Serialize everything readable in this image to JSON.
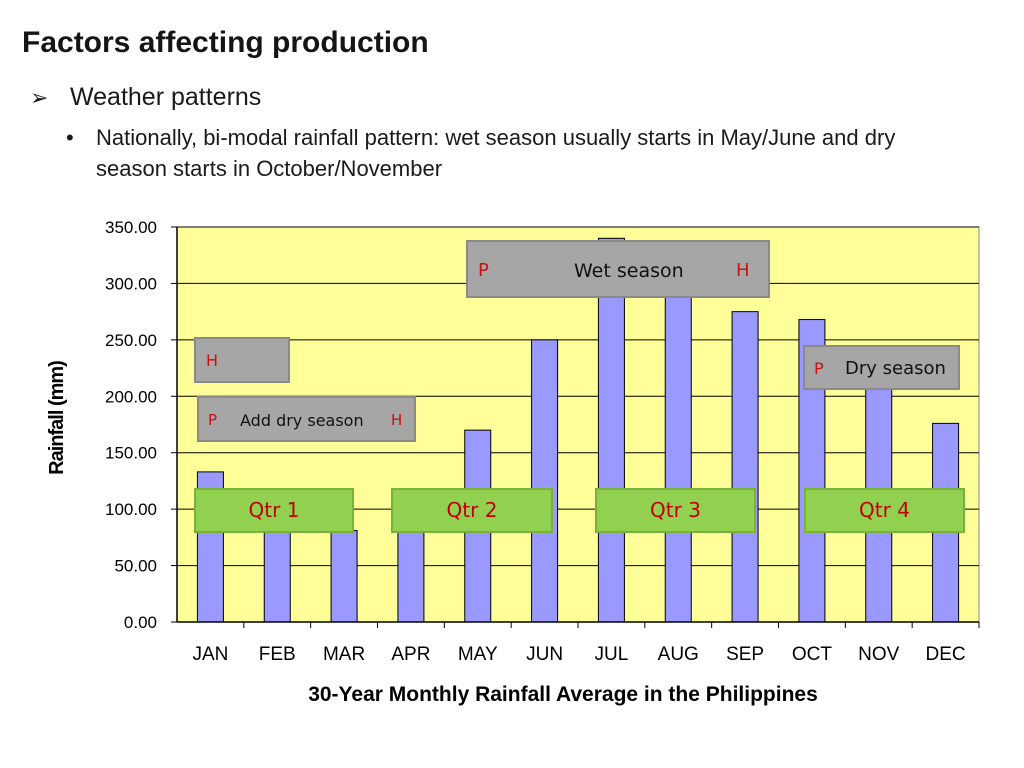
{
  "slide": {
    "title": "Factors affecting production",
    "bullet_level1": "Weather patterns",
    "bullet_level1_marker": "➢",
    "bullet_level2_marker": "•",
    "bullet_level2": "Nationally, bi-modal rainfall pattern: wet season usually starts in May/June and dry season starts in October/November"
  },
  "chart_data": {
    "type": "bar",
    "title": "30-Year Monthly Rainfall Average in the Philippines",
    "xlabel": "30-Year Monthly Rainfall Average in the Philippines",
    "ylabel": "Rainfall (mm)",
    "categories": [
      "JAN",
      "FEB",
      "MAR",
      "APR",
      "MAY",
      "JUN",
      "JUL",
      "AUG",
      "SEP",
      "OCT",
      "NOV",
      "DEC"
    ],
    "values": [
      133,
      108,
      81,
      90,
      170,
      250,
      340,
      330,
      275,
      268,
      210,
      176
    ],
    "ylim": [
      0,
      350
    ],
    "yticks": [
      "0.00",
      "50.00",
      "100.00",
      "150.00",
      "200.00",
      "250.00",
      "300.00",
      "350.00"
    ],
    "grid": true,
    "colors": {
      "plot_bg": "#ffff99",
      "bar": "#9999ff",
      "bar_edge": "#000000",
      "grid": "#000000"
    }
  },
  "annotations": {
    "wet_season": {
      "p": "P",
      "label": "Wet season",
      "h": "H"
    },
    "dry_season": {
      "p": "P",
      "label": "Dry season"
    },
    "add_dry_season": {
      "p": "P",
      "label": "Add dry season",
      "h": "H"
    },
    "h_box": {
      "h": "H"
    },
    "quarters": [
      "Qtr 1",
      "Qtr 2",
      "Qtr 3",
      "Qtr 4"
    ]
  }
}
